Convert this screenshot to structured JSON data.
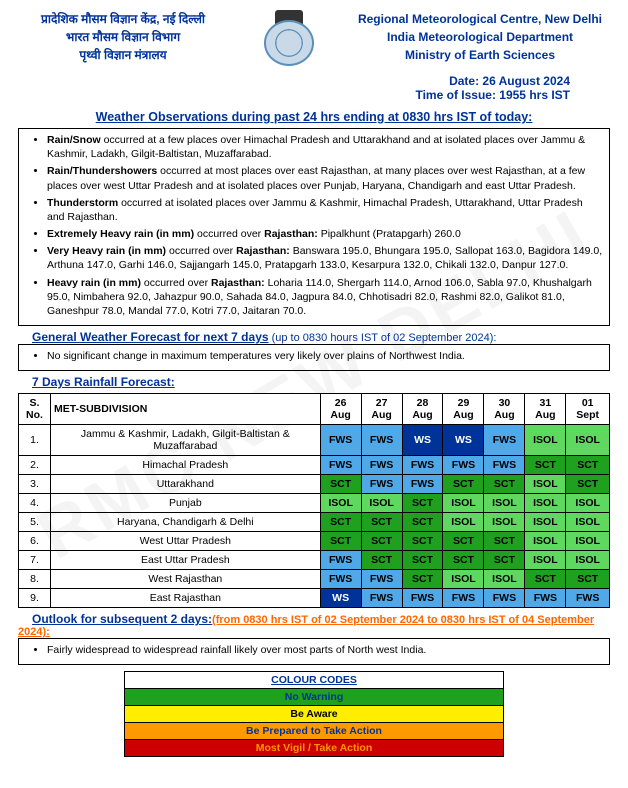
{
  "header": {
    "hindi_line1": "प्रादेशिक मौसम विज्ञान केंद्र, नई दिल्ली",
    "hindi_line2": "भारत मौसम विज्ञान विभाग",
    "hindi_line3": "पृथ्वी विज्ञान मंत्रालय",
    "eng_line1": "Regional Meteorological Centre, New Delhi",
    "eng_line2": "India Meteorological Department",
    "eng_line3": "Ministry of Earth Sciences"
  },
  "issue": {
    "date": "Date: 26 August 2024",
    "time": "Time of Issue: 1955 hrs IST"
  },
  "titles": {
    "obs": "Weather Observations during past 24 hrs ending at 0830 hrs IST of today:",
    "gen": "General Weather Forecast for next 7 days",
    "gen_paren": " (up to 0830 hours IST of 02 September 2024):",
    "rain7": "7 Days Rainfall Forecast:",
    "outlook": "Outlook for subsequent 2 days:",
    "outlook_paren": "(from 0830 hrs IST of 02 September 2024 to 0830 hrs IST of 04 September 2024):",
    "codes": "COLOUR CODES"
  },
  "obs": {
    "b1a": "Rain/Snow",
    "b1b": " occurred at a few places over Himachal Pradesh and Uttarakhand and at isolated places over Jammu & Kashmir, Ladakh, Gilgit-Baltistan, Muzaffarabad.",
    "b2a": "Rain/Thundershowers",
    "b2b": " occurred at most places over east Rajasthan, at many places over west Rajasthan, at a few places over west Uttar Pradesh and at isolated places over Punjab, Haryana, Chandigarh and east Uttar Pradesh.",
    "b3a": "Thunderstorm",
    "b3b": " occurred at isolated places over Jammu & Kashmir, Himachal Pradesh, Uttarakhand, Uttar Pradesh and Rajasthan.",
    "b4a": "Extremely Heavy rain (in mm) ",
    "b4b": "occurred over ",
    "b4c": "Rajasthan:",
    "b4d": " Pipalkhunt (Pratapgarh) 260.0",
    "b5a": "Very Heavy rain (in mm) ",
    "b5b": "occurred over ",
    "b5c": "Rajasthan:",
    "b5d": " Banswara 195.0, Bhungara 195.0, Sallopat 163.0, Bagidora 149.0, Arthuna 147.0, Garhi 146.0, Sajjangarh 145.0, Pratapgarh 133.0, Kesarpura 132.0, Chikali 132.0, Danpur 127.0.",
    "b6a": "Heavy rain (in mm) ",
    "b6b": "occurred over ",
    "b6c": "Rajasthan:",
    "b6d": " Loharia 114.0, Shergarh 114.0, Arnod 106.0, Sabla 97.0, Khushalgarh 95.0, Nimbahera 92.0, Jahazpur 90.0, Sahada 84.0, Jagpura 84.0, Chhotisadri 82.0, Rashmi 82.0, Galikot 81.0, Ganeshpur 78.0, Mandal 77.0, Kotri 77.0, Jaitaran 70.0."
  },
  "gen_box": "No significant change in maximum temperatures very likely over plains of Northwest India.",
  "outlook_box": "Fairly widespread to widespread rainfall likely over most parts of North west India.",
  "table": {
    "head": [
      "S. No.",
      "MET-SUBDIVISION",
      "26 Aug",
      "27 Aug",
      "28 Aug",
      "29 Aug",
      "30 Aug",
      "31 Aug",
      "01 Sept"
    ],
    "rows": [
      {
        "n": "1.",
        "name": "Jammu & Kashmir, Ladakh, Gilgit-Baltistan & Muzaffarabad",
        "cells": [
          "FWS",
          "FWS",
          "WS",
          "WS",
          "FWS",
          "ISOL",
          "ISOL"
        ]
      },
      {
        "n": "2.",
        "name": "Himachal Pradesh",
        "cells": [
          "FWS",
          "FWS",
          "FWS",
          "FWS",
          "FWS",
          "SCT",
          "SCT"
        ]
      },
      {
        "n": "3.",
        "name": "Uttarakhand",
        "cells": [
          "SCT",
          "FWS",
          "FWS",
          "SCT",
          "SCT",
          "ISOL",
          "SCT"
        ]
      },
      {
        "n": "4.",
        "name": "Punjab",
        "cells": [
          "ISOL",
          "ISOL",
          "SCT",
          "ISOL",
          "ISOL",
          "ISOL",
          "ISOL"
        ]
      },
      {
        "n": "5.",
        "name": "Haryana, Chandigarh & Delhi",
        "cells": [
          "SCT",
          "SCT",
          "SCT",
          "ISOL",
          "ISOL",
          "ISOL",
          "ISOL"
        ]
      },
      {
        "n": "6.",
        "name": "West Uttar Pradesh",
        "cells": [
          "SCT",
          "SCT",
          "SCT",
          "SCT",
          "SCT",
          "ISOL",
          "ISOL"
        ]
      },
      {
        "n": "7.",
        "name": "East Uttar Pradesh",
        "cells": [
          "FWS",
          "SCT",
          "SCT",
          "SCT",
          "SCT",
          "ISOL",
          "ISOL"
        ]
      },
      {
        "n": "8.",
        "name": "West Rajasthan",
        "cells": [
          "FWS",
          "FWS",
          "SCT",
          "ISOL",
          "ISOL",
          "SCT",
          "SCT"
        ]
      },
      {
        "n": "9.",
        "name": "East Rajasthan",
        "cells": [
          "WS",
          "FWS",
          "FWS",
          "FWS",
          "FWS",
          "FWS",
          "FWS"
        ]
      }
    ]
  },
  "colors": {
    "WS": "#003399",
    "FWS": "#4fa8e8",
    "SCT": "#1fa01f",
    "ISOL": "#5fd85f",
    "cc_green": "#1fa01f",
    "cc_yellow": "#ffee00",
    "cc_orange": "#ff9900",
    "cc_red": "#cc0000"
  },
  "cc": {
    "l1": "No Warning",
    "l2": "Be Aware",
    "l3": "Be Prepared to Take Action",
    "l4": "Most Vigil / Take Action"
  }
}
